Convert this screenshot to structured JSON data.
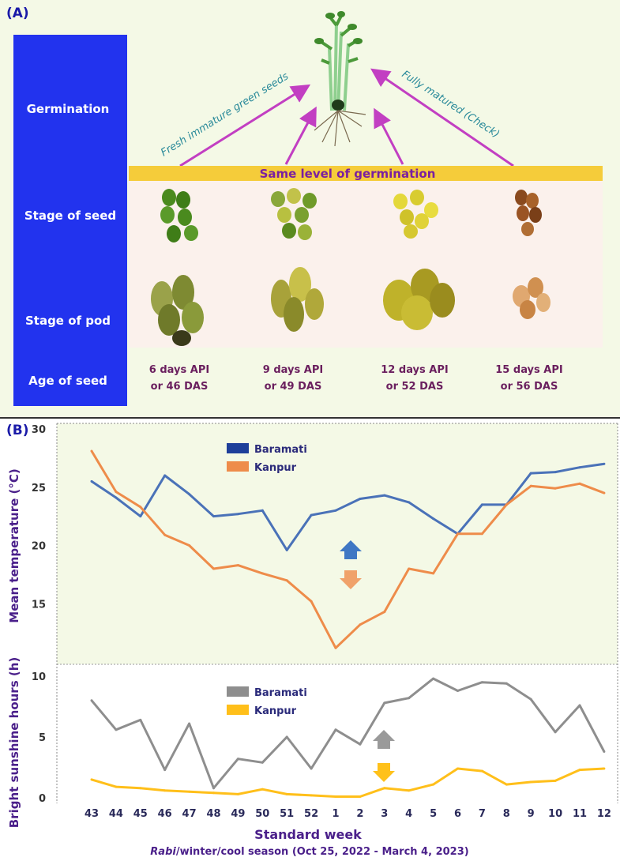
{
  "panel_a": {
    "label": "(A)",
    "row_labels": [
      "Germination",
      "Stage of seed",
      "Stage of pod",
      "Age of seed"
    ],
    "arrow_left_label": "Fresh immature green seeds",
    "arrow_right_label": "Fully matured (Check)",
    "banner": "Same level of germination",
    "ages": [
      {
        "line1": "6 days API",
        "line2": "or 46 DAS"
      },
      {
        "line1": "9 days API",
        "line2": "or 49 DAS"
      },
      {
        "line1": "12 days API",
        "line2": "or 52 DAS"
      },
      {
        "line1": "15 days API",
        "line2": "or 56 DAS"
      }
    ],
    "colors": {
      "sidebar": "#2233ee",
      "banner": "#f5cc3a",
      "arrow": "#c23fc2",
      "age_text": "#6a1f5e",
      "italic_label": "#2a8a9a"
    }
  },
  "panel_b_label": "(B)",
  "chart_data": [
    {
      "type": "line",
      "ylabel": "Mean temperature (°C)",
      "ylim": [
        10,
        30
      ],
      "yticks": [
        15,
        20,
        25,
        30
      ],
      "grid": false,
      "legend_position": "top-center",
      "x": [
        "43",
        "44",
        "45",
        "46",
        "47",
        "48",
        "49",
        "50",
        "51",
        "52",
        "1",
        "2",
        "3",
        "4",
        "5",
        "6",
        "7",
        "8",
        "9",
        "10",
        "11",
        "12"
      ],
      "series": [
        {
          "name": "Baramati",
          "color": "#4a72b8",
          "legend_color": "#1e3f9a",
          "values": [
            25.5,
            24.1,
            22.5,
            26.0,
            24.4,
            22.5,
            22.7,
            23.0,
            19.6,
            22.6,
            23.0,
            24.0,
            24.3,
            23.7,
            22.3,
            21.0,
            23.5,
            23.5,
            26.2,
            26.3,
            26.7,
            27.0
          ]
        },
        {
          "name": "Kanpur",
          "color": "#ee8c4a",
          "legend_color": "#ee8c4a",
          "values": [
            28.1,
            24.6,
            23.3,
            20.9,
            20.0,
            18.0,
            18.3,
            17.6,
            17.0,
            15.2,
            11.2,
            13.2,
            14.3,
            18.0,
            17.6,
            21.0,
            21.0,
            23.5,
            25.1,
            24.9,
            25.3,
            24.5
          ]
        }
      ],
      "markers": [
        {
          "direction": "up",
          "color": "#3f77c4"
        },
        {
          "direction": "down",
          "color": "#f0a26a"
        }
      ]
    },
    {
      "type": "line",
      "ylabel": "Bright sunshine hours (h)",
      "xlabel": "Standard week",
      "subtitle_italic": "Rabi",
      "subtitle_rest": "/winter/cool season (Oct 25, 2022 - March 4, 2023)",
      "ylim": [
        0,
        10
      ],
      "yticks": [
        0,
        5,
        10
      ],
      "grid": false,
      "legend_position": "top-center",
      "x": [
        "43",
        "44",
        "45",
        "46",
        "47",
        "48",
        "49",
        "50",
        "51",
        "52",
        "1",
        "2",
        "3",
        "4",
        "5",
        "6",
        "7",
        "8",
        "9",
        "10",
        "11",
        "12"
      ],
      "series": [
        {
          "name": "Baramati",
          "color": "#8e8e8e",
          "legend_color": "#8e8e8e",
          "values": [
            8.0,
            5.6,
            6.4,
            2.3,
            6.1,
            0.8,
            3.2,
            2.9,
            5.0,
            2.4,
            5.6,
            4.4,
            7.8,
            8.2,
            9.8,
            8.8,
            9.5,
            9.4,
            8.1,
            5.4,
            7.6,
            3.8
          ]
        },
        {
          "name": "Kanpur",
          "color": "#ffbf1a",
          "legend_color": "#ffbf1a",
          "values": [
            1.5,
            0.9,
            0.8,
            0.6,
            0.5,
            0.4,
            0.3,
            0.7,
            0.3,
            0.2,
            0.1,
            0.1,
            0.8,
            0.6,
            1.1,
            2.4,
            2.2,
            1.1,
            1.3,
            1.4,
            2.3,
            2.4
          ]
        }
      ],
      "markers": [
        {
          "direction": "up",
          "color": "#9a9a9a"
        },
        {
          "direction": "down",
          "color": "#ffc11a"
        }
      ]
    }
  ]
}
